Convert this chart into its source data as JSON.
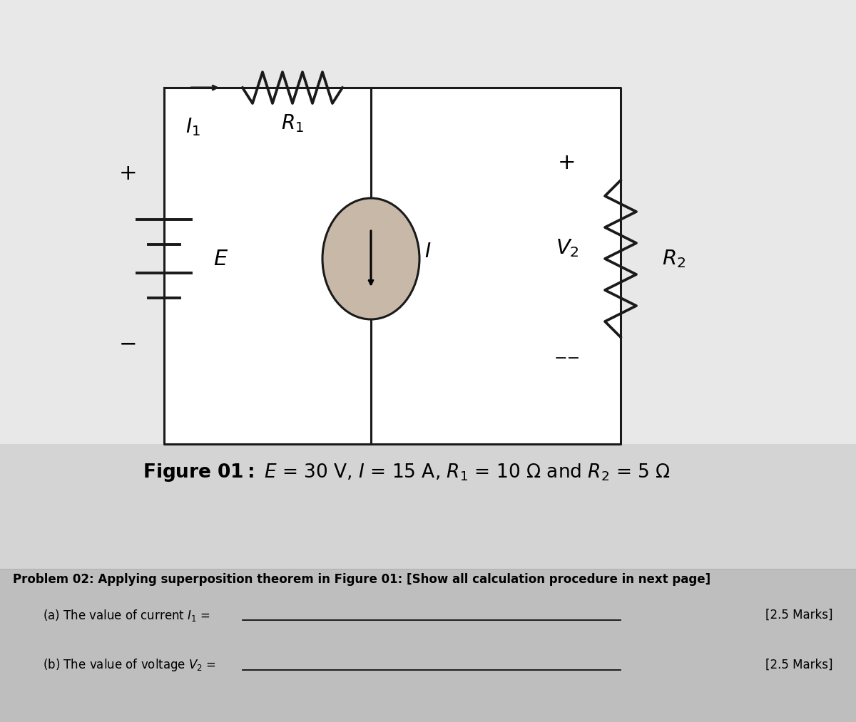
{
  "bg_color": "#d4d4d4",
  "white_box_color": "#f0f0f0",
  "box_color": "#1a1a1a",
  "figure_caption_bold": "Figure 01: ",
  "figure_caption_rest": "$E$ = 30 V, $I$ = 15 A, $R_1$ = 10 Ω and $R_2$ = 5 Ω",
  "problem_text": "Problem 02: Applying superposition theorem in Figure 01: [Show all calculation procedure in next page]",
  "part_a": "(a) The value of current $I_1$ =",
  "part_a_marks": "[2.5 Marks]",
  "part_b": "(b) The value of voltage $V_2$ =",
  "part_b_marks": "[2.5 Marks]"
}
